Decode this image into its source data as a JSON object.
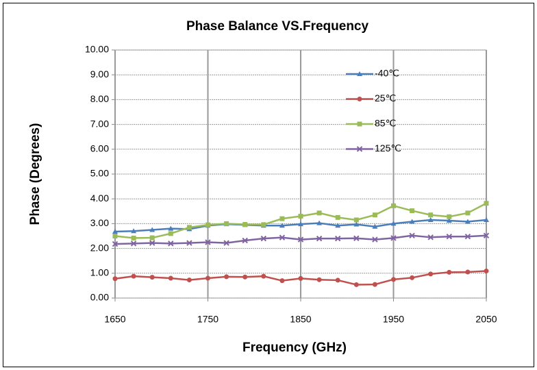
{
  "chart_data": {
    "type": "line",
    "title": "Phase Balance VS.Frequency",
    "x_label": "Frequency (GHz)",
    "y_label": "Phase (Degrees)",
    "x": [
      1650,
      1670,
      1690,
      1710,
      1730,
      1750,
      1770,
      1790,
      1810,
      1830,
      1850,
      1870,
      1890,
      1910,
      1930,
      1950,
      1970,
      1990,
      2010,
      2030,
      2050
    ],
    "series": [
      {
        "name": "-40℃",
        "color": "#4a7ebb",
        "marker": "triangle",
        "values": [
          2.68,
          2.7,
          2.75,
          2.8,
          2.78,
          2.92,
          2.98,
          2.95,
          2.92,
          2.92,
          2.98,
          3.02,
          2.92,
          2.97,
          2.88,
          3.0,
          3.08,
          3.15,
          3.12,
          3.08,
          3.15
        ]
      },
      {
        "name": "25℃",
        "color": "#c0504d",
        "marker": "circle",
        "values": [
          0.78,
          0.88,
          0.84,
          0.8,
          0.73,
          0.8,
          0.86,
          0.85,
          0.88,
          0.7,
          0.79,
          0.74,
          0.72,
          0.54,
          0.55,
          0.75,
          0.82,
          0.97,
          1.04,
          1.05,
          1.09
        ]
      },
      {
        "name": "85℃",
        "color": "#9bbb59",
        "marker": "square",
        "values": [
          2.5,
          2.42,
          2.43,
          2.6,
          2.85,
          2.95,
          3.0,
          2.97,
          2.96,
          3.2,
          3.3,
          3.43,
          3.25,
          3.15,
          3.35,
          3.72,
          3.52,
          3.35,
          3.28,
          3.43,
          3.82
        ]
      },
      {
        "name": "125℃",
        "color": "#8064a2",
        "marker": "x",
        "values": [
          2.18,
          2.2,
          2.22,
          2.2,
          2.22,
          2.25,
          2.22,
          2.32,
          2.4,
          2.44,
          2.36,
          2.4,
          2.4,
          2.41,
          2.36,
          2.42,
          2.52,
          2.45,
          2.48,
          2.48,
          2.52
        ]
      }
    ],
    "xlim": [
      1650,
      2050
    ],
    "xticks": [
      1650,
      1750,
      1850,
      1950,
      2050
    ],
    "ylim": [
      0,
      10
    ],
    "yticks": [
      {
        "value": 0,
        "label": "0.00"
      },
      {
        "value": 1,
        "label": "1.00"
      },
      {
        "value": 2,
        "label": "2.00"
      },
      {
        "value": 3,
        "label": "3.00"
      },
      {
        "value": 4,
        "label": "4.00"
      },
      {
        "value": 5,
        "label": "5.00"
      },
      {
        "value": 6,
        "label": "6.00"
      },
      {
        "value": 7,
        "label": "7.00"
      },
      {
        "value": 8,
        "label": "8.00"
      },
      {
        "value": 9,
        "label": "9.00"
      },
      {
        "value": 10,
        "label": "10.00"
      }
    ],
    "grid": true,
    "legend": "upper right"
  }
}
